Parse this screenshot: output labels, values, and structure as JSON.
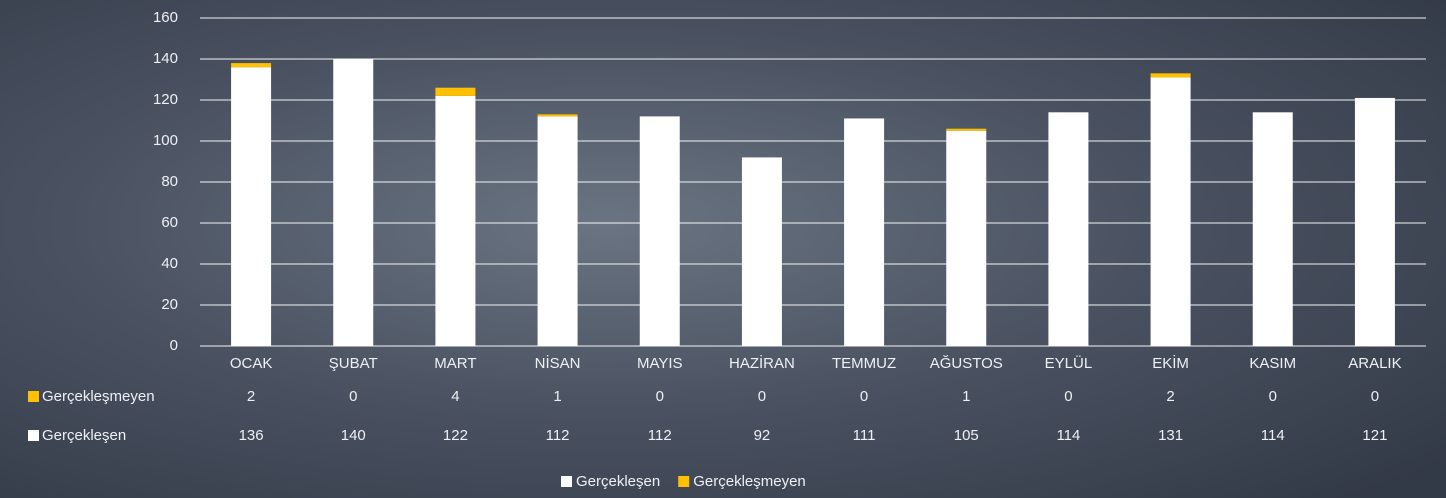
{
  "chart_data": {
    "type": "stacked_bar",
    "categories": [
      "OCAK",
      "ŞUBAT",
      "MART",
      "NİSAN",
      "MAYIS",
      "HAZİRAN",
      "TEMMUZ",
      "AĞUSTOS",
      "EYLÜL",
      "EKİM",
      "KASIM",
      "ARALIK"
    ],
    "series": [
      {
        "name": "Gerçekleşen",
        "color": "#ffffff",
        "values": [
          136,
          140,
          122,
          112,
          112,
          92,
          111,
          105,
          114,
          131,
          114,
          121
        ]
      },
      {
        "name": "Gerçekleşmeyen",
        "color": "#ffc000",
        "values": [
          2,
          0,
          4,
          1,
          0,
          0,
          0,
          1,
          0,
          2,
          0,
          0
        ]
      }
    ],
    "ylim": [
      0,
      160
    ],
    "yticks": [
      0,
      20,
      40,
      60,
      80,
      100,
      120,
      140,
      160
    ],
    "grid": true,
    "legend": "bottom"
  }
}
